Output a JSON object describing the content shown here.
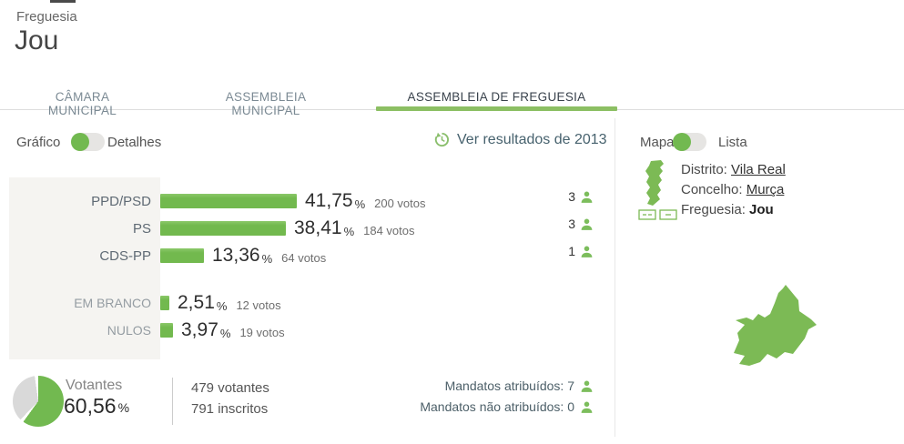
{
  "header": {
    "label": "Freguesia",
    "title": "Jou"
  },
  "tabs": [
    {
      "label": "CÂMARA MUNICIPAL",
      "active": false
    },
    {
      "label": "ASSEMBLEIA MUNICIPAL",
      "active": false
    },
    {
      "label": "ASSEMBLEIA DE FREGUESIA",
      "active": true
    }
  ],
  "view_toggle": {
    "left_label": "Gráfico",
    "right_label": "Detalhes",
    "state": "left"
  },
  "history_link": {
    "label": "Ver resultados de 2013"
  },
  "location": {
    "map_toggle": {
      "left_label": "Mapa",
      "right_label": "Lista",
      "state": "left"
    },
    "district_label": "Distrito:",
    "district": "Vila Real",
    "municipality_label": "Concelho:",
    "municipality": "Murça",
    "parish_label": "Freguesia:",
    "parish": "Jou"
  },
  "chart_data": [
    {
      "type": "bar",
      "orientation": "horizontal",
      "categories": [
        "PPD/PSD",
        "PS",
        "CDS-PP",
        "EM BRANCO",
        "NULOS"
      ],
      "values": [
        41.75,
        38.41,
        13.36,
        2.51,
        3.97
      ],
      "votes": [
        200,
        184,
        64,
        12,
        19
      ],
      "mandates": [
        3,
        3,
        1,
        null,
        null
      ],
      "xlim": [
        0,
        100
      ],
      "bar_color": "#72b950",
      "percent_suffix": "%",
      "rows": [
        {
          "label": "PPD/PSD",
          "percent": "41,75",
          "votes": "200 votos",
          "mandates": "3"
        },
        {
          "label": "PS",
          "percent": "38,41",
          "votes": "184 votos",
          "mandates": "3"
        },
        {
          "label": "CDS-PP",
          "percent": "13,36",
          "votes": "64 votos",
          "mandates": "1"
        },
        {
          "label": "EM BRANCO",
          "percent": "2,51",
          "votes": "12 votos",
          "mandates": null
        },
        {
          "label": "NULOS",
          "percent": "3,97",
          "votes": "19 votos",
          "mandates": null
        }
      ]
    },
    {
      "type": "pie",
      "title": "Votantes",
      "values": [
        60.56,
        39.44
      ],
      "colors": [
        "#72b950",
        "#d9d9d9"
      ],
      "center_label": "60,56"
    }
  ],
  "summary": {
    "votantes_label": "Votantes",
    "turnout_percent": "60,56",
    "turnout_value": 60.56,
    "percent_sign": "%",
    "voters_line": "479 votantes",
    "registered_line": "791 inscritos",
    "mandates_assigned": "Mandatos atribuídos: 7",
    "mandates_assigned_value": 7,
    "mandates_unassigned": "Mandatos não atribuídos: 0",
    "mandates_unassigned_value": 0
  },
  "colors": {
    "green": "#72b950",
    "tab_underline_green": "#8cbf63",
    "icon_green": "#7cbd5c",
    "pie_gray": "#d9d9d9"
  }
}
